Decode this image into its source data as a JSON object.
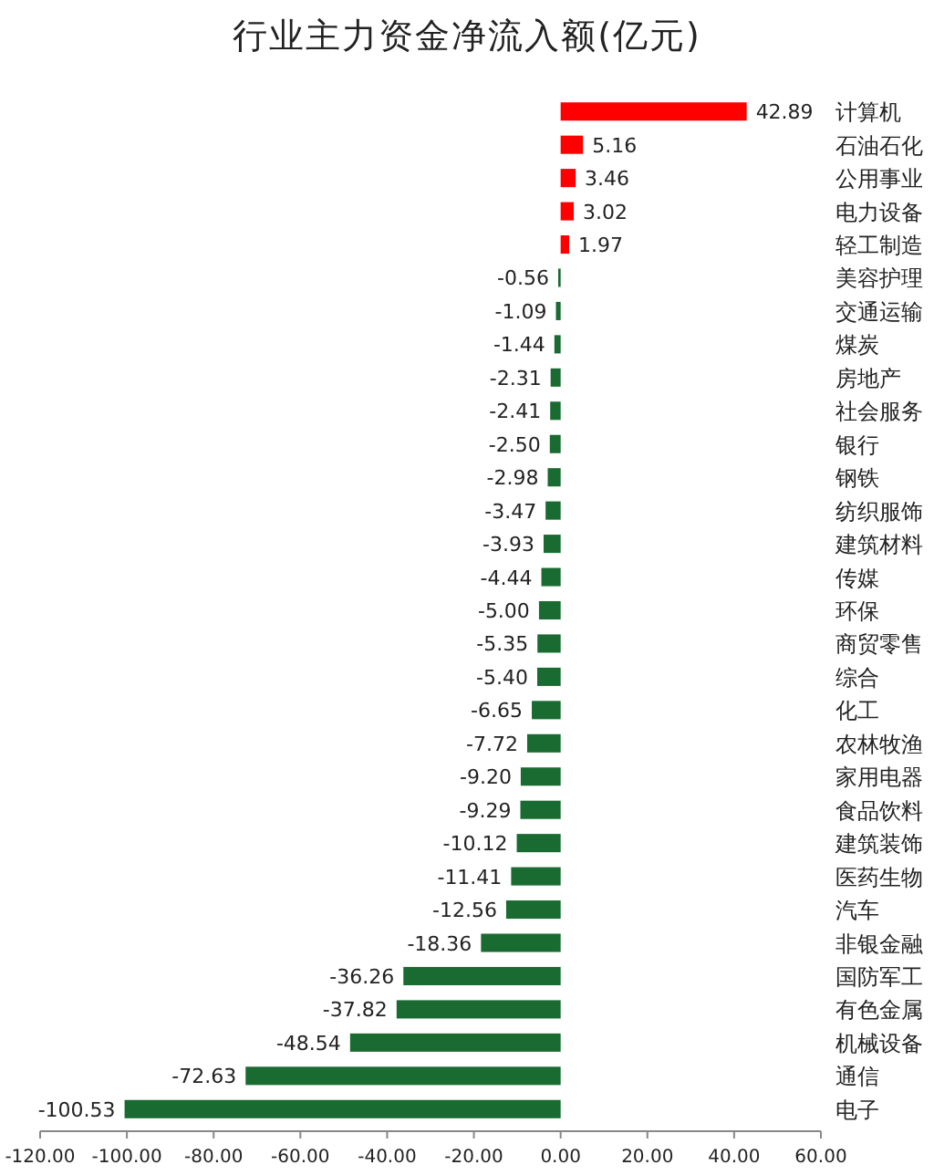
{
  "chart_data": {
    "type": "bar",
    "orientation": "horizontal",
    "title": "行业主力资金净流入额(亿元)",
    "categories": [
      "计算机",
      "石油石化",
      "公用事业",
      "电力设备",
      "轻工制造",
      "美容护理",
      "交通运输",
      "煤炭",
      "房地产",
      "社会服务",
      "银行",
      "钢铁",
      "纺织服饰",
      "建筑材料",
      "传媒",
      "环保",
      "商贸零售",
      "综合",
      "化工",
      "农林牧渔",
      "家用电器",
      "食品饮料",
      "建筑装饰",
      "医药生物",
      "汽车",
      "非银金融",
      "国防军工",
      "有色金属",
      "机械设备",
      "通信",
      "电子"
    ],
    "values": [
      42.89,
      5.16,
      3.46,
      3.02,
      1.97,
      -0.56,
      -1.09,
      -1.44,
      -2.31,
      -2.41,
      -2.5,
      -2.98,
      -3.47,
      -3.93,
      -4.44,
      -5.0,
      -5.35,
      -5.4,
      -6.65,
      -7.72,
      -9.2,
      -9.29,
      -10.12,
      -11.41,
      -12.56,
      -18.36,
      -36.26,
      -37.82,
      -48.54,
      -72.63,
      -100.53
    ],
    "value_labels": [
      "42.89",
      "5.16",
      "3.46",
      "3.02",
      "1.97",
      "-0.56",
      "-1.09",
      "-1.44",
      "-2.31",
      "-2.41",
      "-2.50",
      "-2.98",
      "-3.47",
      "-3.93",
      "-4.44",
      "-5.00",
      "-5.35",
      "-5.40",
      "-6.65",
      "-7.72",
      "-9.20",
      "-9.29",
      "-10.12",
      "-11.41",
      "-12.56",
      "-18.36",
      "-36.26",
      "-37.82",
      "-48.54",
      "-72.63",
      "-100.53"
    ],
    "colors": [
      "#ff0000",
      "#ff0000",
      "#ff0000",
      "#ff0000",
      "#ff0000",
      "#1a6b32",
      "#1a6b32",
      "#1a6b32",
      "#1a6b32",
      "#1a6b32",
      "#1a6b32",
      "#1a6b32",
      "#1a6b32",
      "#1a6b32",
      "#1a6b32",
      "#1a6b32",
      "#1a6b32",
      "#1a6b32",
      "#1a6b32",
      "#1a6b32",
      "#1a6b32",
      "#1a6b32",
      "#1a6b32",
      "#1a6b32",
      "#1a6b32",
      "#1a6b32",
      "#1a6b32",
      "#1a6b32",
      "#1a6b32",
      "#1a6b32",
      "#1a6b32"
    ],
    "xlim": [
      -120,
      60
    ],
    "xticks": [
      {
        "value": -120,
        "label": "-120.00"
      },
      {
        "value": -100,
        "label": "-100.00"
      },
      {
        "value": -80,
        "label": "-80.00"
      },
      {
        "value": -60,
        "label": "-60.00"
      },
      {
        "value": -40,
        "label": "-40.00"
      },
      {
        "value": -20,
        "label": "-20.00"
      },
      {
        "value": 0,
        "label": "0.00"
      },
      {
        "value": 20,
        "label": "20.00"
      },
      {
        "value": 40,
        "label": "40.00"
      },
      {
        "value": 60,
        "label": "60.00"
      }
    ],
    "grid": false
  }
}
